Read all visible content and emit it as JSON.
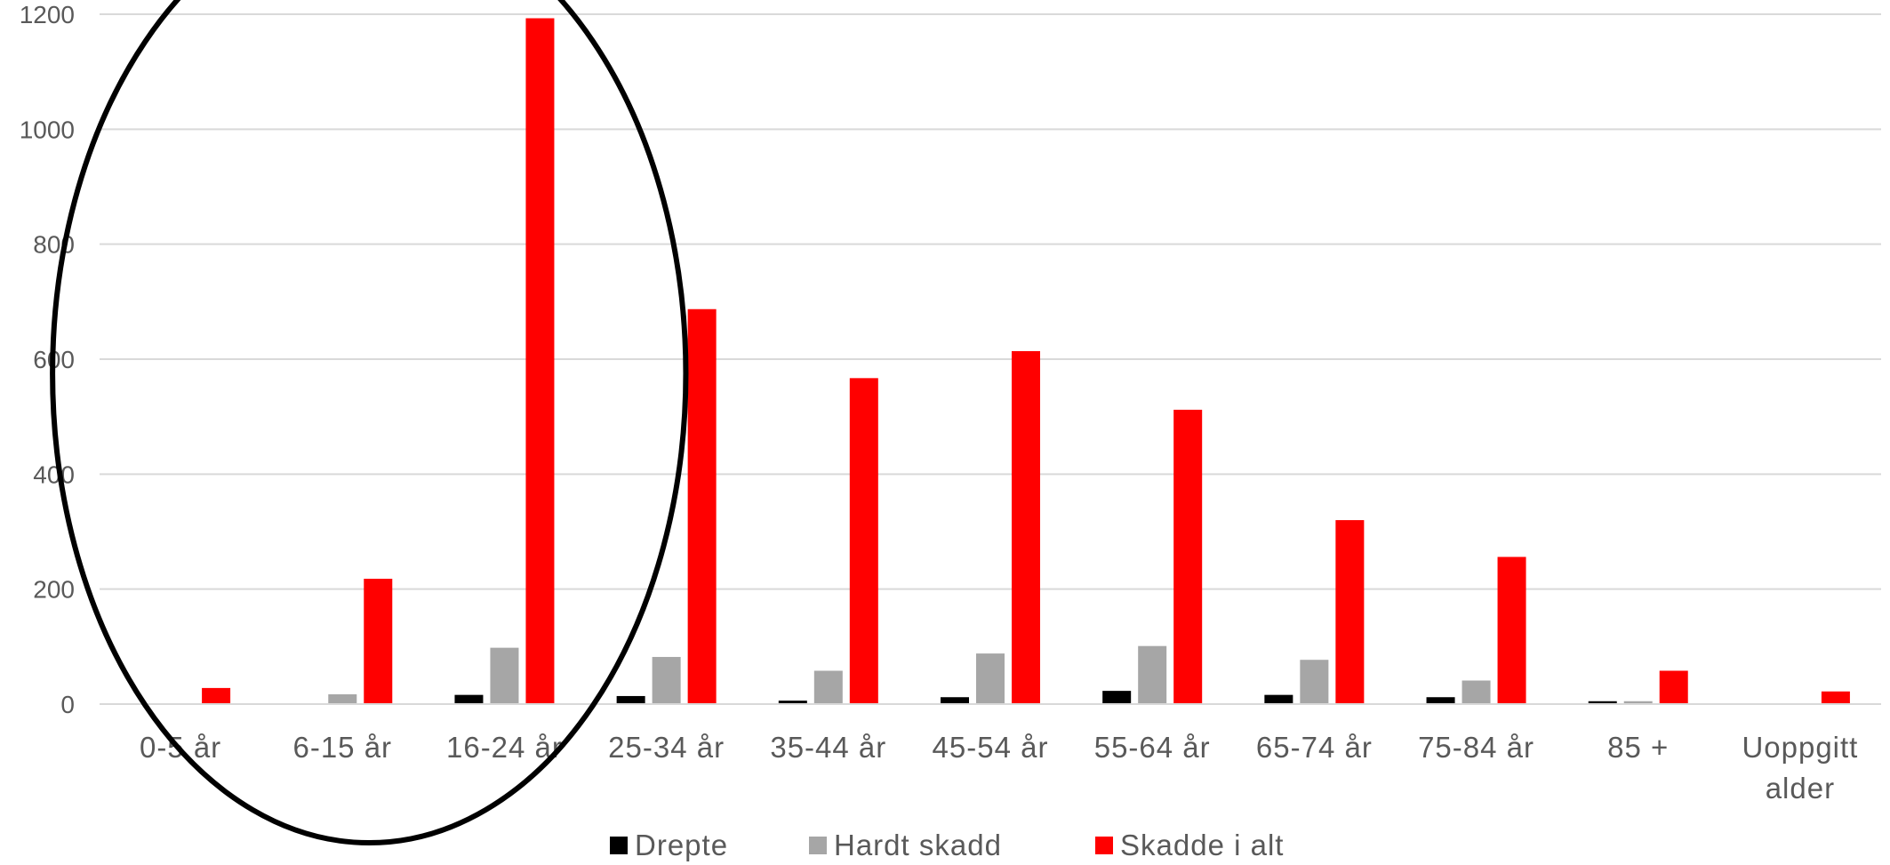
{
  "chart_data": {
    "type": "bar",
    "categories": [
      "0-5 år",
      "6-15 år",
      "16-24 år",
      "25-34 år",
      "35-44 år",
      "45-54 år",
      "55-64 år",
      "65-74 år",
      "75-84 år",
      "85 +",
      "Uoppgitt alder"
    ],
    "series": [
      {
        "name": "Drepte",
        "color": "#000000",
        "values": [
          0,
          1,
          16,
          14,
          6,
          12,
          23,
          16,
          12,
          5,
          0
        ]
      },
      {
        "name": "Hardt skadd",
        "color": "#a6a6a6",
        "values": [
          1,
          17,
          98,
          82,
          58,
          88,
          101,
          77,
          41,
          5,
          0
        ]
      },
      {
        "name": "Skadde i alt",
        "color": "#ff0000",
        "values": [
          28,
          218,
          1193,
          687,
          567,
          614,
          512,
          320,
          256,
          58,
          22
        ]
      }
    ],
    "ylim": [
      0,
      1200
    ],
    "yticks": [
      "0",
      "200",
      "400",
      "600",
      "800",
      "1000",
      "1200"
    ],
    "grid": true,
    "legend_position": "bottom",
    "annotation": {
      "shape": "ellipse",
      "color": "#000000",
      "covers": [
        "0-5 år",
        "6-15 år",
        "16-24 år"
      ]
    }
  }
}
